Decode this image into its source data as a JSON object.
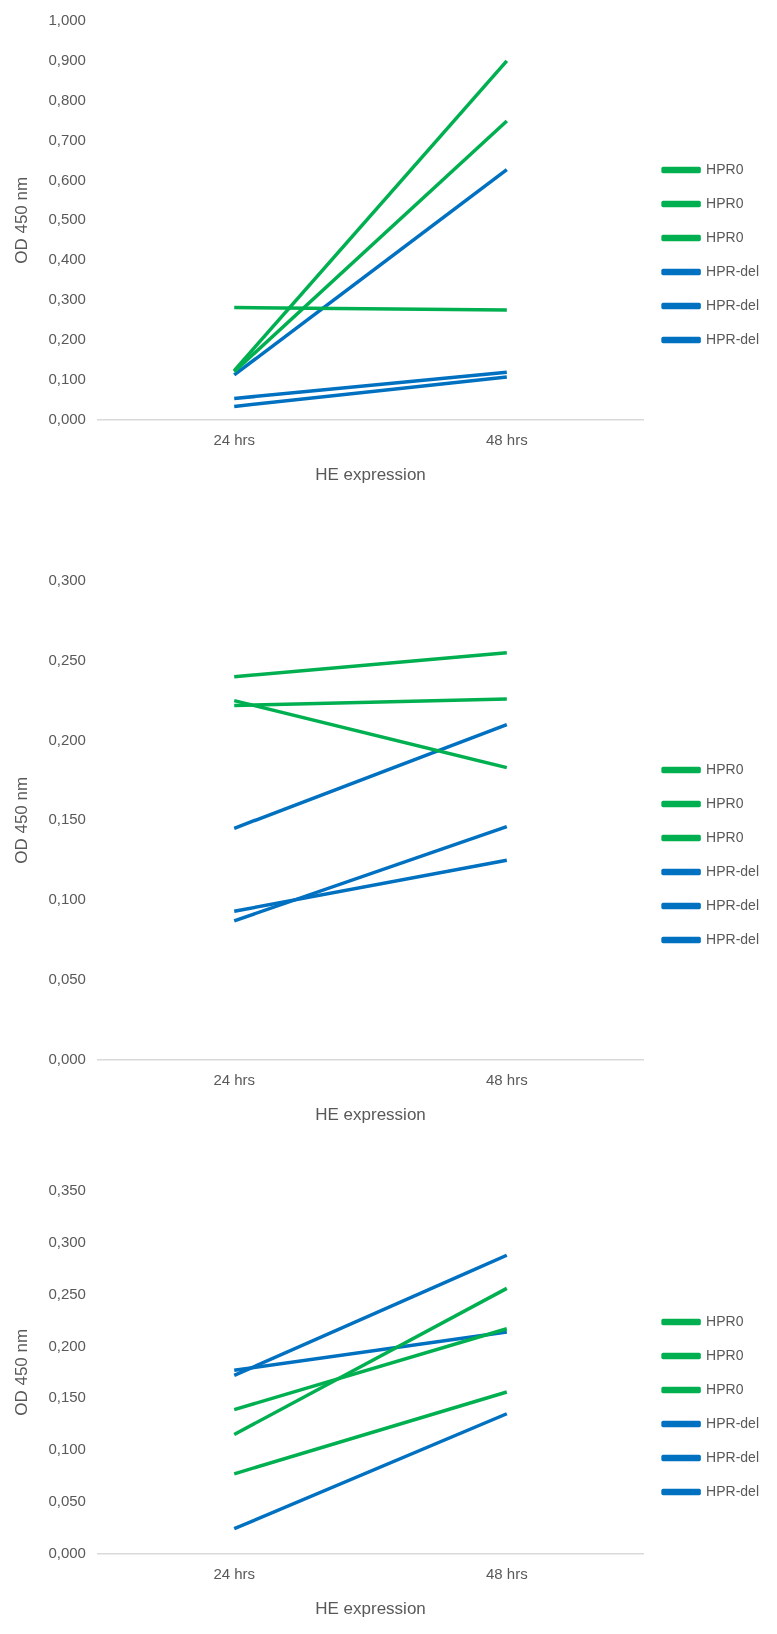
{
  "chart_data": [
    {
      "type": "line",
      "xlabel": "HE expression",
      "ylabel": "OD 450 nm",
      "categories": [
        "24 hrs",
        "48 hrs"
      ],
      "ylim": [
        0,
        1
      ],
      "yticks": [
        {
          "value": 0,
          "label": "0,000"
        },
        {
          "value": 0.1,
          "label": "0,100"
        },
        {
          "value": 0.2,
          "label": "0,200"
        },
        {
          "value": 0.3,
          "label": "0,300"
        },
        {
          "value": 0.4,
          "label": "0,400"
        },
        {
          "value": 0.5,
          "label": "0,500"
        },
        {
          "value": 0.6,
          "label": "0,600"
        },
        {
          "value": 0.7,
          "label": "0,700"
        },
        {
          "value": 0.8,
          "label": "0,800"
        },
        {
          "value": 0.9,
          "label": "0,900"
        },
        {
          "value": 1,
          "label": "1,000"
        }
      ],
      "grid": false,
      "legend": "right",
      "marker": "none",
      "line_style": "solid",
      "series": [
        {
          "name": "HPR0",
          "color": "#00b050",
          "values": [
            0.123,
            0.9
          ]
        },
        {
          "name": "HPR0",
          "color": "#00b050",
          "values": [
            0.12,
            0.749
          ]
        },
        {
          "name": "HPR0",
          "color": "#00b050",
          "values": [
            0.281,
            0.275
          ]
        },
        {
          "name": "HPR-del",
          "color": "#0070c0",
          "values": [
            0.112,
            0.627
          ]
        },
        {
          "name": "HPR-del",
          "color": "#0070c0",
          "values": [
            0.053,
            0.119
          ]
        },
        {
          "name": "HPR-del",
          "color": "#0070c0",
          "values": [
            0.033,
            0.107
          ]
        }
      ]
    },
    {
      "type": "line",
      "xlabel": "HE expression",
      "ylabel": "OD 450 nm",
      "categories": [
        "24 hrs",
        "48 hrs"
      ],
      "ylim": [
        0,
        0.3
      ],
      "yticks": [
        {
          "value": 0,
          "label": "0,000"
        },
        {
          "value": 0.05,
          "label": "0,050"
        },
        {
          "value": 0.1,
          "label": "0,100"
        },
        {
          "value": 0.15,
          "label": "0,150"
        },
        {
          "value": 0.2,
          "label": "0,200"
        },
        {
          "value": 0.25,
          "label": "0,250"
        },
        {
          "value": 0.3,
          "label": "0,300"
        }
      ],
      "grid": false,
      "legend": "right",
      "marker": "none",
      "line_style": "solid",
      "series": [
        {
          "name": "HPR0",
          "color": "#00b050",
          "values": [
            0.24,
            0.255
          ]
        },
        {
          "name": "HPR0",
          "color": "#00b050",
          "values": [
            0.222,
            0.226
          ]
        },
        {
          "name": "HPR0",
          "color": "#00b050",
          "values": [
            0.225,
            0.183
          ]
        },
        {
          "name": "HPR-del",
          "color": "#0070c0",
          "values": [
            0.145,
            0.21
          ]
        },
        {
          "name": "HPR-del",
          "color": "#0070c0",
          "values": [
            0.093,
            0.125
          ]
        },
        {
          "name": "HPR-del",
          "color": "#0070c0",
          "values": [
            0.087,
            0.146
          ]
        }
      ]
    },
    {
      "type": "line",
      "xlabel": "HE expression",
      "ylabel": "OD 450 nm",
      "categories": [
        "24 hrs",
        "48 hrs"
      ],
      "ylim": [
        0,
        0.35
      ],
      "yticks": [
        {
          "value": 0,
          "label": "0,000"
        },
        {
          "value": 0.05,
          "label": "0,050"
        },
        {
          "value": 0.1,
          "label": "0,100"
        },
        {
          "value": 0.15,
          "label": "0,150"
        },
        {
          "value": 0.2,
          "label": "0,200"
        },
        {
          "value": 0.25,
          "label": "0,250"
        },
        {
          "value": 0.3,
          "label": "0,300"
        },
        {
          "value": 0.35,
          "label": "0,350"
        }
      ],
      "grid": false,
      "legend": "right",
      "marker": "none",
      "line_style": "solid",
      "series": [
        {
          "name": "HPR0",
          "color": "#00b050",
          "values": [
            0.139,
            0.217
          ]
        },
        {
          "name": "HPR0",
          "color": "#00b050",
          "values": [
            0.115,
            0.256
          ]
        },
        {
          "name": "HPR0",
          "color": "#00b050",
          "values": [
            0.077,
            0.156
          ]
        },
        {
          "name": "HPR-del",
          "color": "#0070c0",
          "values": [
            0.172,
            0.288
          ]
        },
        {
          "name": "HPR-del",
          "color": "#0070c0",
          "values": [
            0.177,
            0.214
          ]
        },
        {
          "name": "HPR-del",
          "color": "#0070c0",
          "values": [
            0.024,
            0.135
          ]
        }
      ]
    }
  ]
}
